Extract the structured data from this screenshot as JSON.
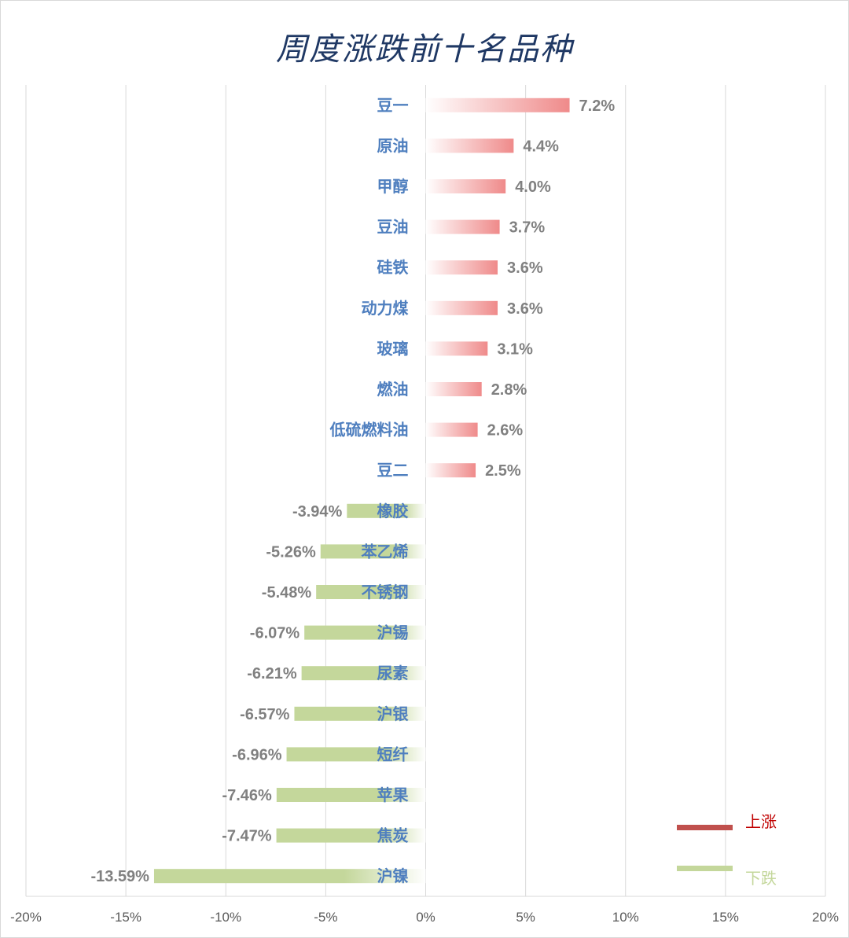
{
  "chart_data": {
    "type": "bar",
    "orientation": "horizontal",
    "title": "周度涨跌前十名品种",
    "xlabel": "",
    "ylabel": "",
    "xlim": [
      -20,
      20
    ],
    "x_ticks": [
      "-20%",
      "-15%",
      "-10%",
      "-5%",
      "0%",
      "5%",
      "10%",
      "15%",
      "20%"
    ],
    "grid": true,
    "legend_position": "bottom-right",
    "series": [
      {
        "name": "上涨",
        "color": "#c0504d",
        "categories": [
          "豆一",
          "原油",
          "甲醇",
          "豆油",
          "硅铁",
          "动力煤",
          "玻璃",
          "燃油",
          "低硫燃料油",
          "豆二"
        ],
        "values": [
          7.2,
          4.4,
          4.0,
          3.7,
          3.6,
          3.6,
          3.1,
          2.8,
          2.6,
          2.5
        ],
        "labels": [
          "7.2%",
          "4.4%",
          "4.0%",
          "3.7%",
          "3.6%",
          "3.6%",
          "3.1%",
          "2.8%",
          "2.6%",
          "2.5%"
        ]
      },
      {
        "name": "下跌",
        "color": "#c4d79b",
        "categories": [
          "橡胶",
          "苯乙烯",
          "不锈钢",
          "沪锡",
          "尿素",
          "沪银",
          "短纤",
          "苹果",
          "焦炭",
          "沪镍"
        ],
        "values": [
          -3.94,
          -5.26,
          -5.48,
          -6.07,
          -6.21,
          -6.57,
          -6.96,
          -7.46,
          -7.47,
          -13.59
        ],
        "labels": [
          "-3.94%",
          "-5.26%",
          "-5.48%",
          "-6.07%",
          "-6.21%",
          "-6.57%",
          "-6.96%",
          "-7.46%",
          "-7.47%",
          "-13.59%"
        ]
      }
    ]
  }
}
